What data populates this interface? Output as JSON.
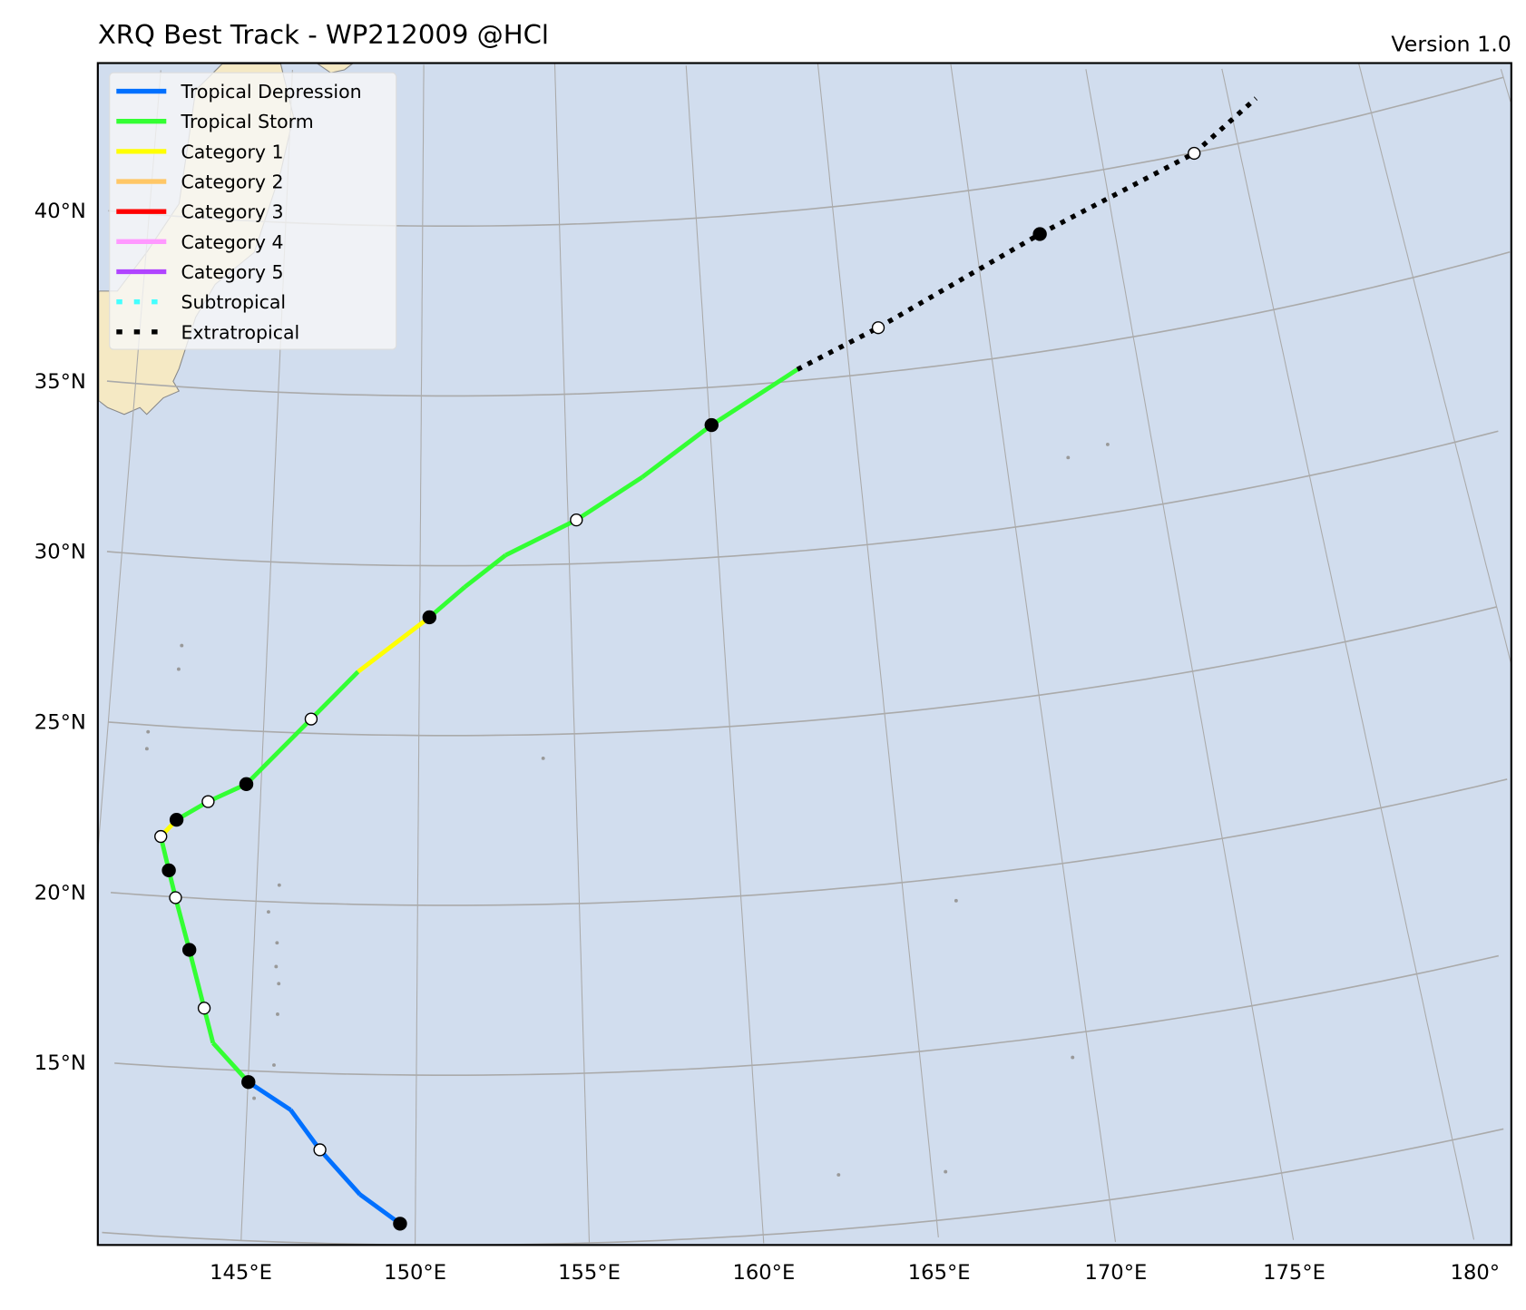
{
  "chart_data": {
    "type": "line",
    "title": "XRQ Best Track - WP212009  @HCl",
    "version_label": "Version 1.0",
    "map": {
      "ocean_color": "#d1ddee",
      "land_color": "#f5e9c4",
      "grid_color": "#aaaaaa",
      "lat_ticks": [
        "15°N",
        "20°N",
        "25°N",
        "30°N",
        "35°N",
        "40°N"
      ],
      "lat_values": [
        15,
        20,
        25,
        30,
        35,
        40
      ],
      "lon_ticks": [
        "145°E",
        "150°E",
        "155°E",
        "160°E",
        "165°E",
        "170°E",
        "175°E",
        "180°"
      ],
      "lon_values": [
        145,
        150,
        155,
        160,
        165,
        170,
        175,
        180
      ]
    },
    "legend": {
      "placement": "top-left",
      "items": [
        {
          "label": "Tropical Depression",
          "color": "#0070ff",
          "style": "solid"
        },
        {
          "label": "Tropical Storm",
          "color": "#33ff33",
          "style": "solid"
        },
        {
          "label": "Category 1",
          "color": "#ffff00",
          "style": "solid"
        },
        {
          "label": "Category 2",
          "color": "#ffc766",
          "style": "solid"
        },
        {
          "label": "Category 3",
          "color": "#ff0000",
          "style": "solid"
        },
        {
          "label": "Category 4",
          "color": "#ff99ff",
          "style": "solid"
        },
        {
          "label": "Category 5",
          "color": "#b044ff",
          "style": "solid"
        },
        {
          "label": "Subtropical",
          "color": "#44ffff",
          "style": "dotted"
        },
        {
          "label": "Extratropical",
          "color": "#000000",
          "style": "dotted"
        }
      ]
    },
    "track": [
      {
        "lat": 10.62,
        "lon": 149.56,
        "marker": "filled",
        "seg": "Tropical Depression"
      },
      {
        "lat": 11.46,
        "lon": 148.39,
        "marker": "none",
        "seg": "Tropical Depression"
      },
      {
        "lat": 12.75,
        "lon": 147.19,
        "marker": "open",
        "seg": "Tropical Depression"
      },
      {
        "lat": 13.9,
        "lon": 146.29,
        "marker": "none",
        "seg": "Tropical Depression"
      },
      {
        "lat": 14.67,
        "lon": 145.01,
        "marker": "filled",
        "seg": "Tropical Storm"
      },
      {
        "lat": 15.77,
        "lon": 143.9,
        "marker": "none",
        "seg": "Tropical Storm"
      },
      {
        "lat": 16.78,
        "lon": 143.58,
        "marker": "open",
        "seg": "Tropical Storm"
      },
      {
        "lat": 18.47,
        "lon": 143.03,
        "marker": "filled",
        "seg": "Tropical Storm"
      },
      {
        "lat": 19.98,
        "lon": 142.51,
        "marker": "open",
        "seg": "Tropical Storm"
      },
      {
        "lat": 20.77,
        "lon": 142.25,
        "marker": "filled",
        "seg": "Tropical Storm"
      },
      {
        "lat": 21.75,
        "lon": 141.93,
        "marker": "open",
        "seg": "Category 1"
      },
      {
        "lat": 22.27,
        "lon": 142.39,
        "marker": "filled",
        "seg": "Tropical Storm"
      },
      {
        "lat": 22.86,
        "lon": 143.35,
        "marker": "open",
        "seg": "Tropical Storm"
      },
      {
        "lat": 23.43,
        "lon": 144.53,
        "marker": "filled",
        "seg": "Tropical Storm"
      },
      {
        "lat": 25.42,
        "lon": 146.52,
        "marker": "open",
        "seg": "Tropical Storm"
      },
      {
        "lat": 26.85,
        "lon": 148.0,
        "marker": "none",
        "seg": "Category 1"
      },
      {
        "lat": 28.48,
        "lon": 150.32,
        "marker": "filled",
        "seg": "Tropical Storm"
      },
      {
        "lat": 29.37,
        "lon": 151.49,
        "marker": "none",
        "seg": "Tropical Storm"
      },
      {
        "lat": 30.3,
        "lon": 152.87,
        "marker": "none",
        "seg": "Tropical Storm"
      },
      {
        "lat": 31.29,
        "lon": 155.28,
        "marker": "open",
        "seg": "Tropical Storm"
      },
      {
        "lat": 32.47,
        "lon": 157.57,
        "marker": "none",
        "seg": "Tropical Storm"
      },
      {
        "lat": 33.89,
        "lon": 160.06,
        "marker": "filled",
        "seg": "Tropical Storm"
      },
      {
        "lat": 35.33,
        "lon": 163.19,
        "marker": "none",
        "seg": "Extratropical"
      },
      {
        "lat": 36.32,
        "lon": 166.17,
        "marker": "open",
        "seg": "Extratropical"
      },
      {
        "lat": 38.43,
        "lon": 172.33,
        "marker": "filled",
        "seg": "Extratropical"
      },
      {
        "lat": 39.98,
        "lon": 178.36,
        "marker": "open",
        "seg": "Extratropical"
      },
      {
        "lat": 41.19,
        "lon": 181.0,
        "marker": "none",
        "seg": ""
      }
    ]
  }
}
